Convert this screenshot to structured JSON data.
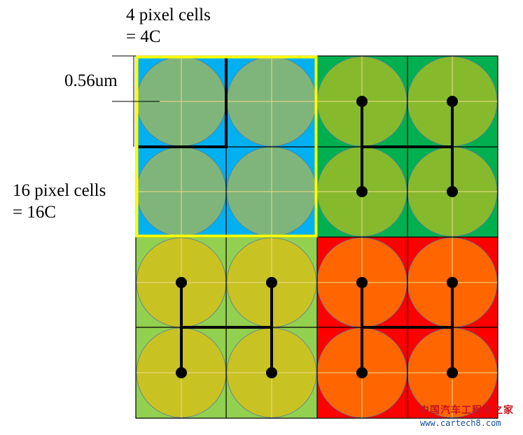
{
  "labels": {
    "four_cells_line1": "4 pixel cells",
    "four_cells_line2": "= 4C",
    "sixteen_cells_line1": "16 pixel cells",
    "sixteen_cells_line2": "= 16C",
    "pixel_pitch": "0.56um"
  },
  "watermark": {
    "site_name": "中国汽车工程师之家",
    "url": "www.cartech8.com"
  },
  "quadrants": [
    {
      "name": "top-left",
      "background": "#00b0f0",
      "circle": "#7fb57a",
      "interconnect": "cross"
    },
    {
      "name": "top-right",
      "background": "#00b050",
      "circle": "#86ba2c",
      "interconnect": "h-bridge"
    },
    {
      "name": "bottom-left",
      "background": "#92d050",
      "circle": "#c8c223",
      "interconnect": "h-bridge"
    },
    {
      "name": "bottom-right",
      "background": "#ff0000",
      "circle": "#ff6600",
      "interconnect": "h-bridge"
    }
  ],
  "colors": {
    "highlight": "#ffff00",
    "gridline": "#f2d98a",
    "wire": "#000000"
  }
}
